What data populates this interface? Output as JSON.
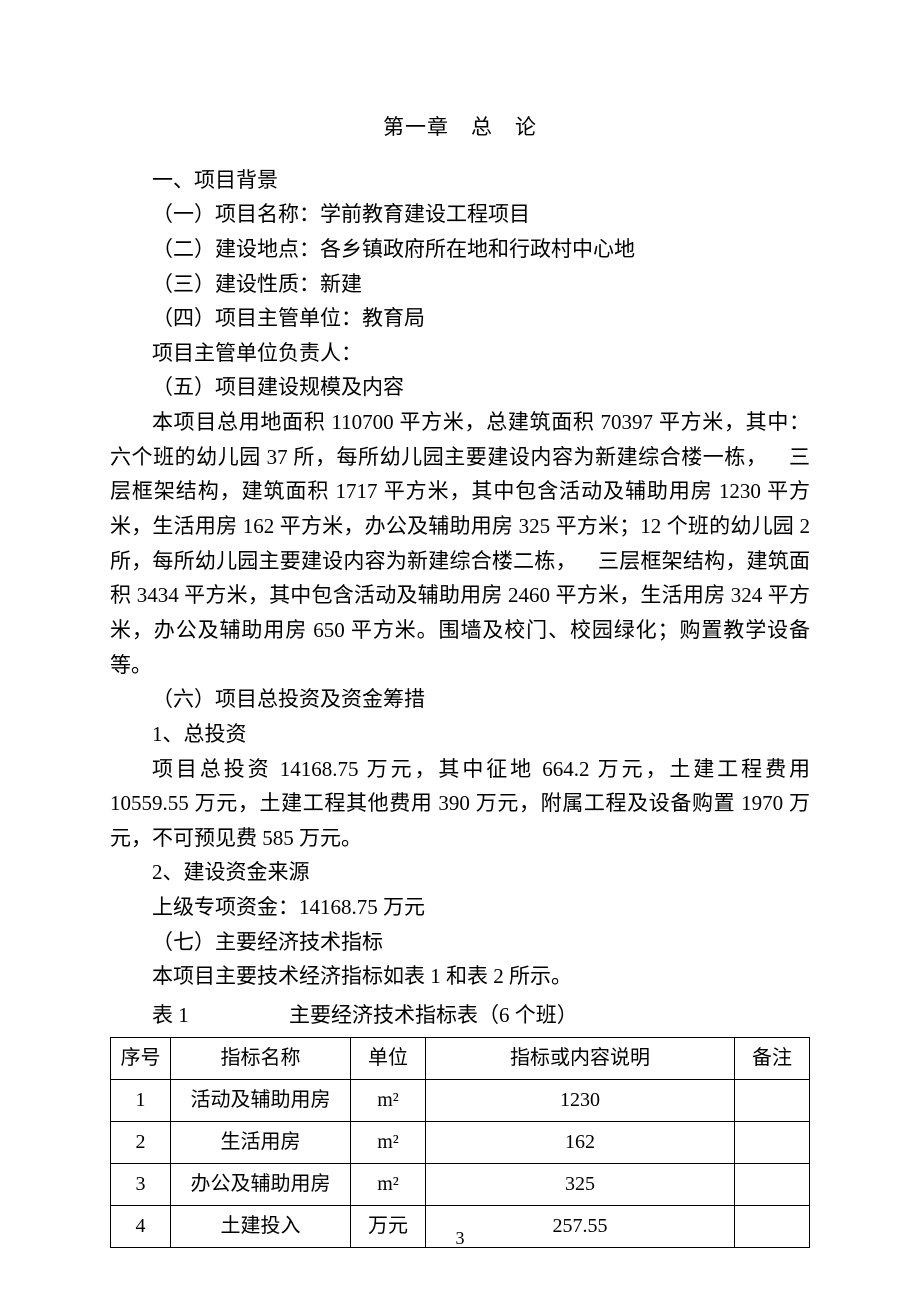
{
  "chapter_title": "第一章 总 论",
  "sections": {
    "s1": "一、项目背景",
    "s1_1": "（一）项目名称：学前教育建设工程项目",
    "s1_2": "（二）建设地点：各乡镇政府所在地和行政村中心地",
    "s1_3": "（三）建设性质：新建",
    "s1_4": "（四）项目主管单位：教育局",
    "s1_4b": "项目主管单位负责人：",
    "s1_5": "（五）项目建设规模及内容",
    "p1": "本项目总用地面积 110700 平方米，总建筑面积 70397 平方米，其中：六个班的幼儿园 37 所，每所幼儿园主要建设内容为新建综合楼一栋， 三层框架结构，建筑面积 1717 平方米，其中包含活动及辅助用房 1230 平方米，生活用房 162 平方米，办公及辅助用房 325 平方米；12 个班的幼儿园 2 所，每所幼儿园主要建设内容为新建综合楼二栋， 三层框架结构，建筑面积 3434 平方米，其中包含活动及辅助用房 2460 平方米，生活用房 324 平方米，办公及辅助用房 650 平方米。围墙及校门、校园绿化；购置教学设备等。",
    "s1_6": "（六）项目总投资及资金筹措",
    "s1_6_1": "1、总投资",
    "p2": "项目总投资 14168.75 万元，其中征地 664.2 万元，土建工程费用 10559.55 万元，土建工程其他费用 390 万元，附属工程及设备购置 1970 万元，不可预见费 585 万元。",
    "s1_6_2": "2、建设资金来源",
    "p3": "上级专项资金：14168.75 万元",
    "s1_7": "（七）主要经济技术指标",
    "p4": "本项目主要技术经济指标如表 1 和表 2 所示。"
  },
  "table_caption": {
    "label": "表 1",
    "title": "主要经济技术指标表（6 个班）"
  },
  "table": {
    "columns": [
      "序号",
      "指标名称",
      "单位",
      "指标或内容说明",
      "备注"
    ],
    "rows": [
      [
        "1",
        "活动及辅助用房",
        "m²",
        "1230",
        ""
      ],
      [
        "2",
        "生活用房",
        "m²",
        "162",
        ""
      ],
      [
        "3",
        "办公及辅助用房",
        "m²",
        "325",
        ""
      ],
      [
        "4",
        "土建投入",
        "万元",
        "257.55",
        ""
      ]
    ]
  },
  "page_number": "3"
}
